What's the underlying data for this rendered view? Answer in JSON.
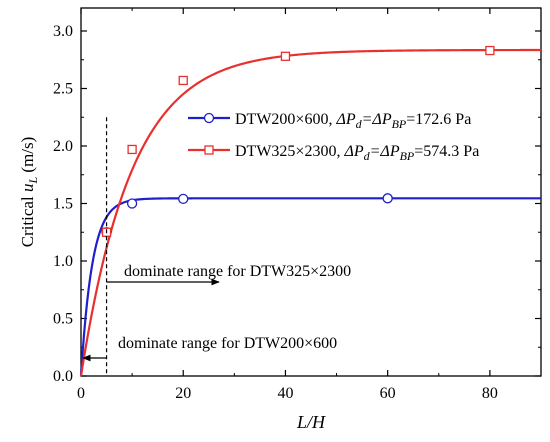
{
  "chart_data": {
    "type": "line",
    "xlabel": "L/H",
    "ylabel": {
      "prefix": "Critical ",
      "var": "u",
      "sub": "L",
      "unit": "(m/s)"
    },
    "xlim": [
      0,
      90
    ],
    "ylim": [
      0,
      3.2
    ],
    "x_ticks": [
      0,
      20,
      40,
      60,
      80
    ],
    "x_tick_labels": [
      "0",
      "20",
      "40",
      "60",
      "80"
    ],
    "y_ticks": [
      0,
      0.5,
      1.0,
      1.5,
      2.0,
      2.5,
      3.0
    ],
    "y_tick_labels": [
      "0.0",
      "0.5",
      "1.0",
      "1.5",
      "2.0",
      "2.5",
      "3.0"
    ],
    "grid": false,
    "legend_position": "upper-right",
    "series": [
      {
        "name": "DTW200×600,  ΔPd=ΔPBP=172.6 Pa",
        "color": "#1f1fcc",
        "marker": "circle",
        "legend_parts": {
          "main": "DTW200×600,  ",
          "p1": "ΔP",
          "s1": "d",
          "eq": "=ΔP",
          "s2": "BP",
          "tail": "=172.6 Pa"
        },
        "curve": {
          "plateau": 1.545,
          "k": 0.45
        },
        "points": [
          [
            5,
            1.25
          ],
          [
            10,
            1.5
          ],
          [
            20,
            1.54
          ],
          [
            60,
            1.545
          ]
        ]
      },
      {
        "name": "DTW325×2300, ΔPd=ΔPBP=574.3 Pa",
        "color": "#e8302e",
        "marker": "square",
        "legend_parts": {
          "main": "DTW325×2300, ",
          "p1": "ΔP",
          "s1": "d",
          "eq": "=ΔP",
          "s2": "BP",
          "tail": "=574.3 Pa"
        },
        "curve": {
          "plateau": 2.835,
          "k": 0.1
        },
        "points": [
          [
            5,
            1.25
          ],
          [
            10,
            1.97
          ],
          [
            20,
            2.57
          ],
          [
            40,
            2.78
          ],
          [
            80,
            2.83
          ]
        ]
      }
    ],
    "annotations": [
      {
        "text": "dominate range for DTW325×2300",
        "arrow_from_x": 5,
        "arrow_to_x": 27,
        "arrow_y": 1.0
      },
      {
        "text": "dominate range for DTW200×600",
        "arrow_from_x": 5,
        "arrow_to_x": 0,
        "arrow_y": 0.2
      }
    ],
    "vline_x": 5
  }
}
